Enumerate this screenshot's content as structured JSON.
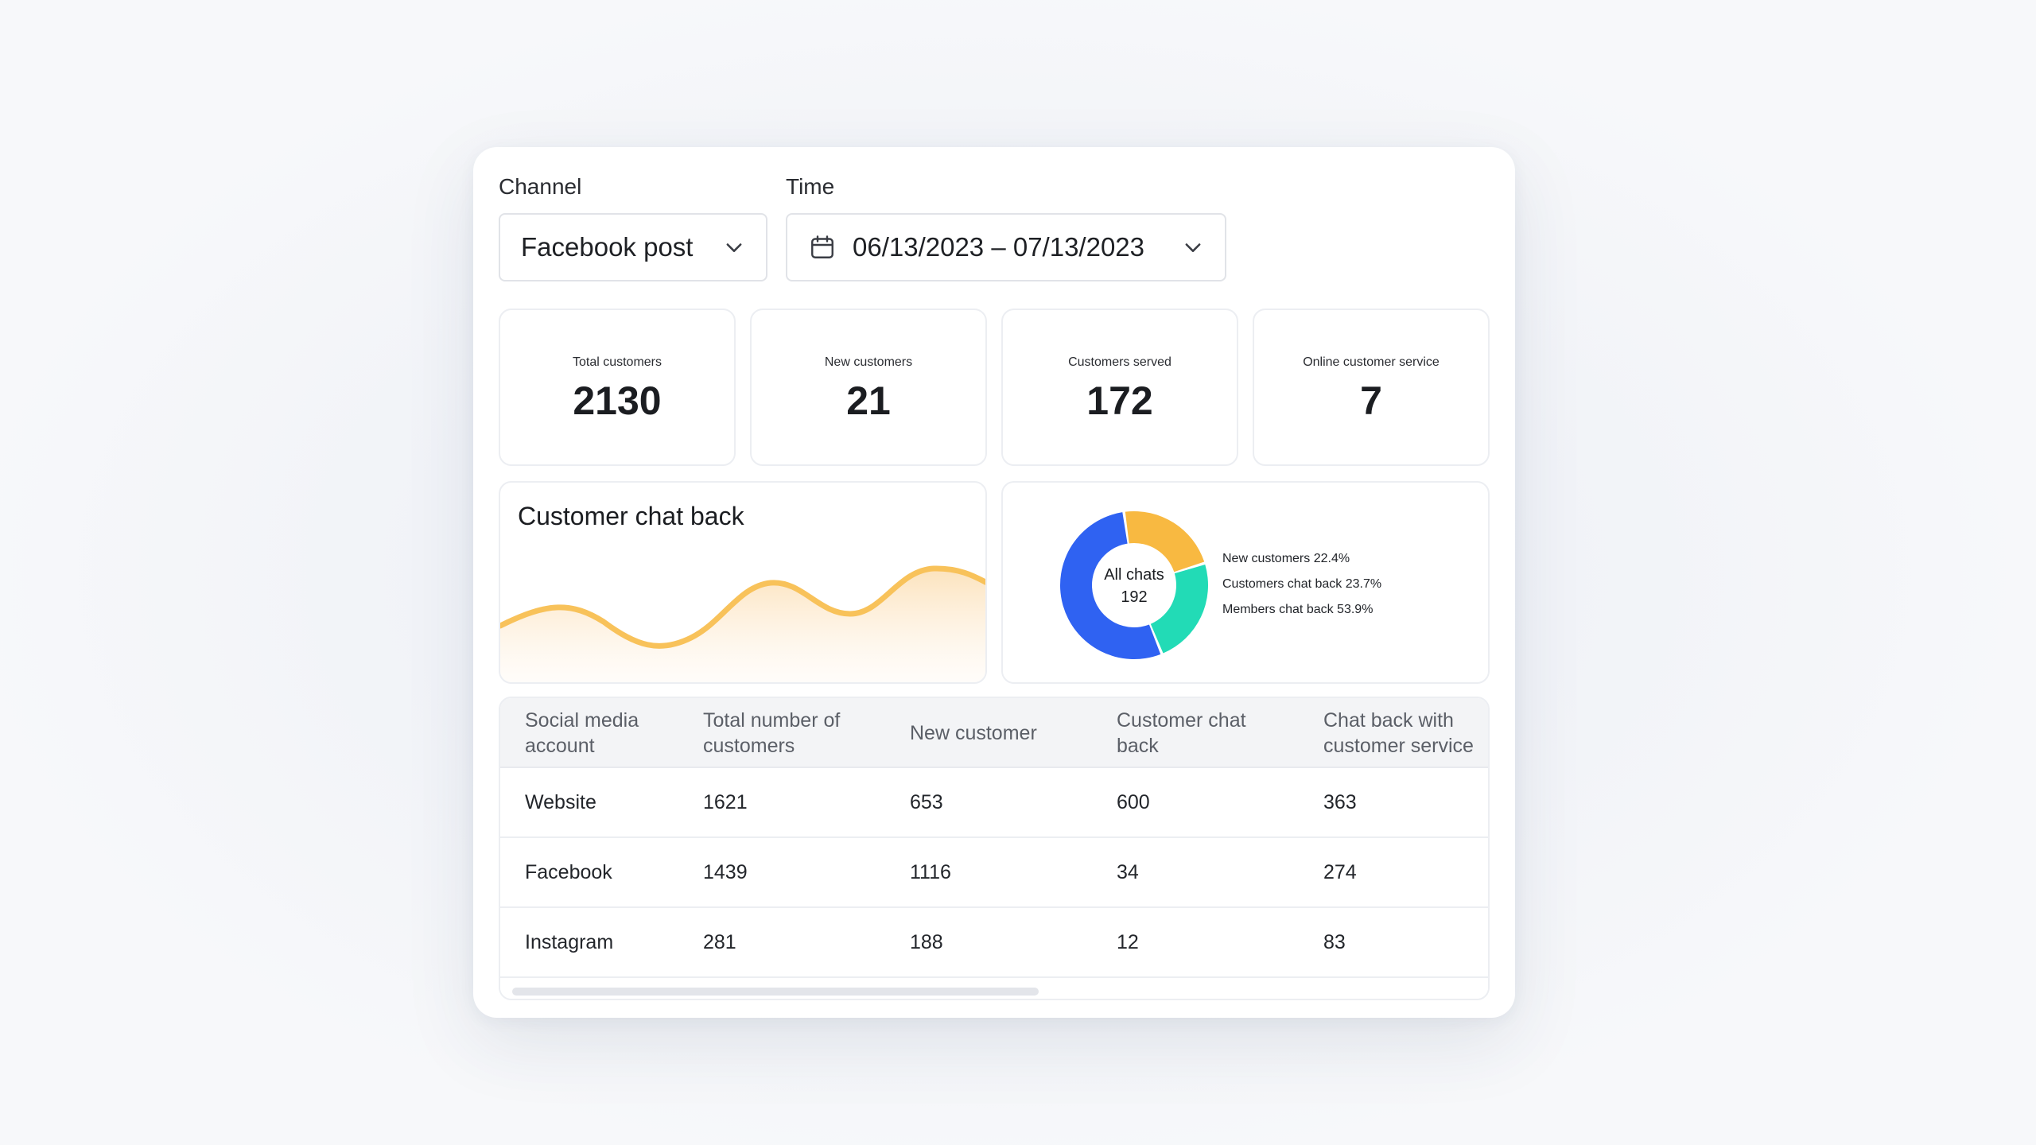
{
  "filters": {
    "channel_label": "Channel",
    "channel_value": "Facebook post",
    "time_label": "Time",
    "time_value": "06/13/2023 – 07/13/2023"
  },
  "stats": [
    {
      "label": "Total customers",
      "value": "2130"
    },
    {
      "label": "New customers",
      "value": "21"
    },
    {
      "label": "Customers served",
      "value": "172"
    },
    {
      "label": "Online customer service",
      "value": "7"
    }
  ],
  "chat_back_card": {
    "title": "Customer chat back",
    "line_color": "#f8c25a",
    "fill_color": "#fdebd2"
  },
  "donut": {
    "center_label": "All chats",
    "center_value": "192",
    "segments": [
      {
        "label": "New customers",
        "percent": 22.4,
        "legend": "New customers 22.4%",
        "color": "#f8b941"
      },
      {
        "label": "Customers chat back",
        "percent": 23.7,
        "legend": "Customers chat back 23.7%",
        "color": "#22dbb6"
      },
      {
        "label": "Members chat back",
        "percent": 53.9,
        "legend": "Members chat back 53.9%",
        "color": "#2f62f2"
      }
    ]
  },
  "table": {
    "headers": [
      "Social media account",
      "Total number of customers",
      "New customer",
      "Customer chat back",
      "Chat back with customer service"
    ],
    "rows": [
      [
        "Website",
        "1621",
        "653",
        "600",
        "363"
      ],
      [
        "Facebook",
        "1439",
        "1116",
        "34",
        "274"
      ],
      [
        "Instagram",
        "281",
        "188",
        "12",
        "83"
      ]
    ]
  },
  "colors": {
    "accent_blue": "#2f62f2",
    "accent_orange": "#f8b941",
    "accent_teal": "#22dbb6"
  }
}
